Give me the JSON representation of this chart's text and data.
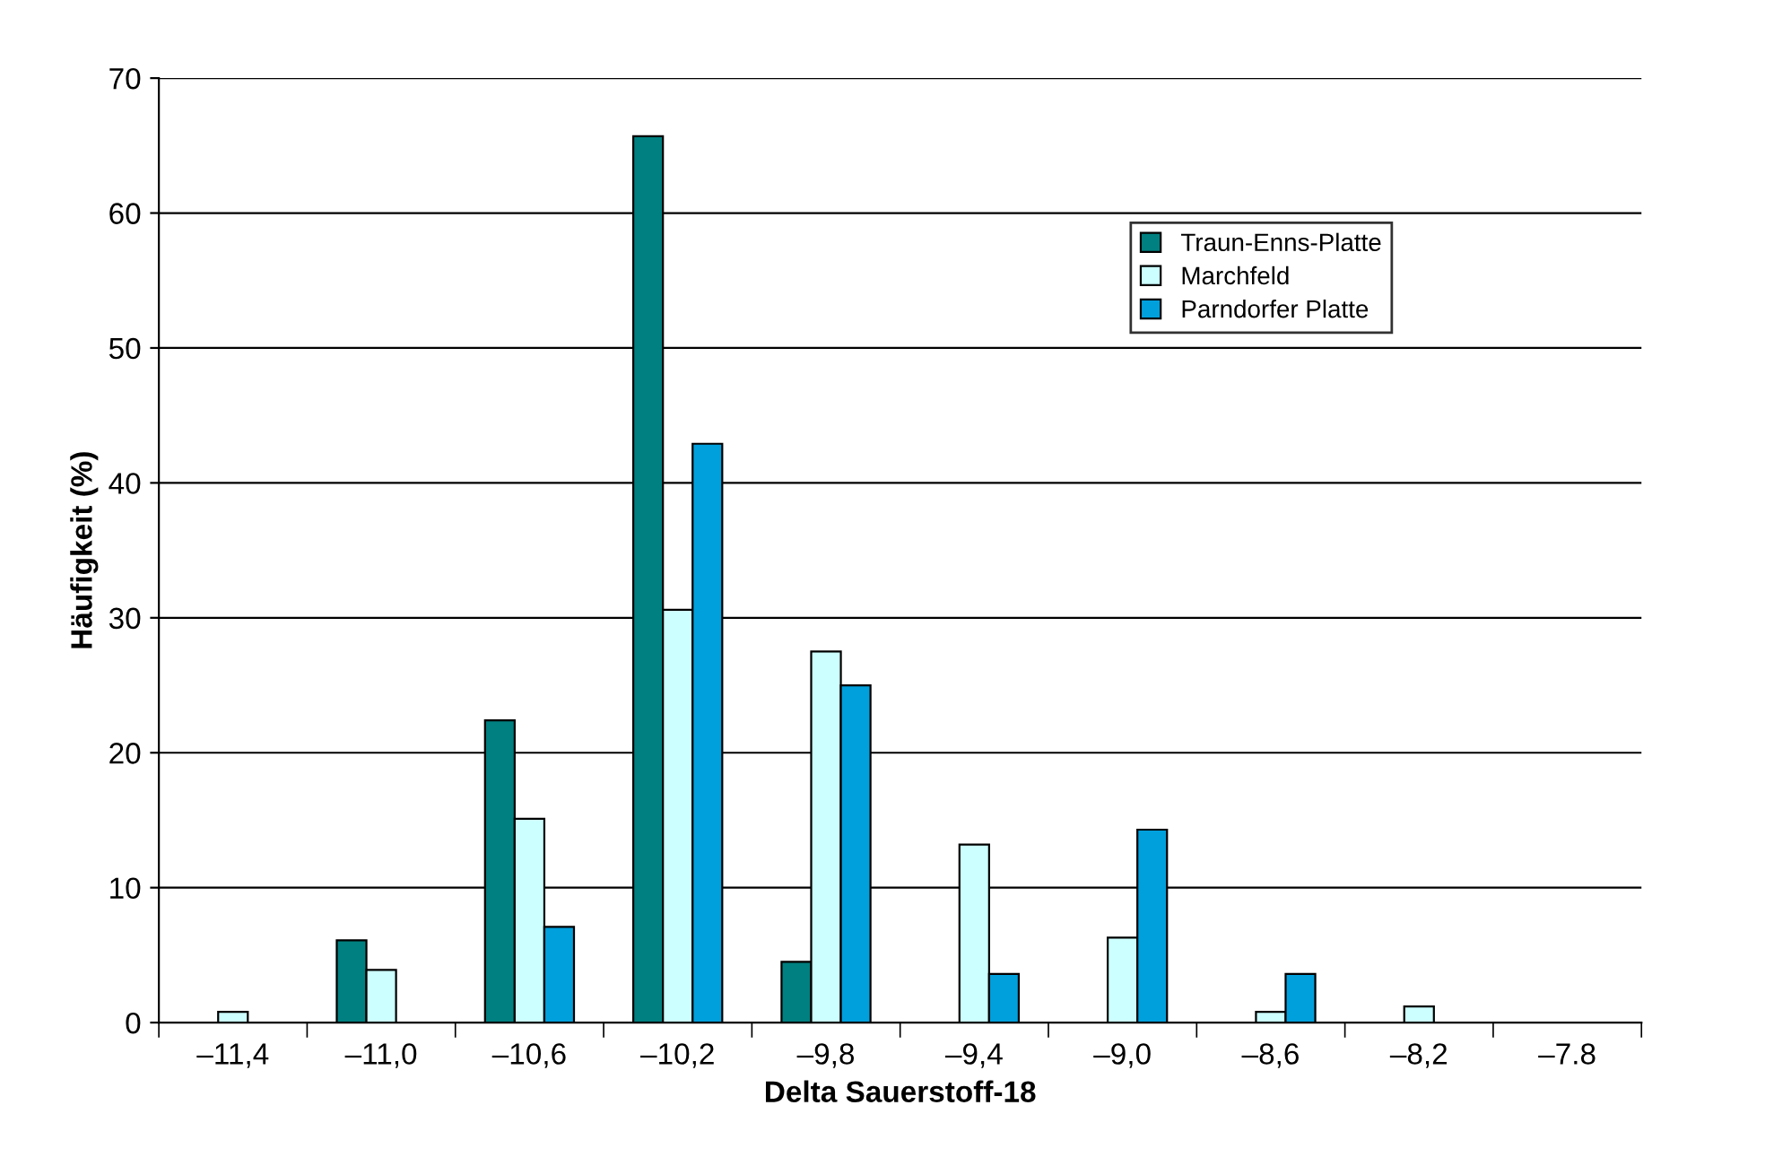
{
  "chart_data": {
    "type": "bar",
    "xlabel": "Delta Sauerstoff-18",
    "ylabel": "Häufigkeit (%)",
    "categories": [
      "–11,4",
      "–11,0",
      "–10,6",
      "–10,2",
      "–9,8",
      "–9,4",
      "–9,0",
      "–8,6",
      "–8,2",
      "–7.8"
    ],
    "series": [
      {
        "name": "Traun-Enns-Platte",
        "color": "#008080",
        "values": [
          0,
          6.1,
          22.4,
          65.7,
          4.5,
          0,
          0,
          0,
          0,
          0
        ]
      },
      {
        "name": "Marchfeld",
        "color": "#ccffff",
        "values": [
          0.8,
          3.9,
          15.1,
          30.6,
          27.5,
          13.2,
          6.3,
          0.8,
          1.2,
          0
        ]
      },
      {
        "name": "Parndorfer Platte",
        "color": "#00a0dc",
        "values": [
          0,
          0,
          7.1,
          42.9,
          25.0,
          3.6,
          14.3,
          3.6,
          0,
          0
        ]
      }
    ],
    "ylim": [
      0,
      70
    ],
    "yticks": [
      0,
      10,
      20,
      30,
      40,
      50,
      60,
      70
    ],
    "grid": "y",
    "legend": "top right"
  }
}
